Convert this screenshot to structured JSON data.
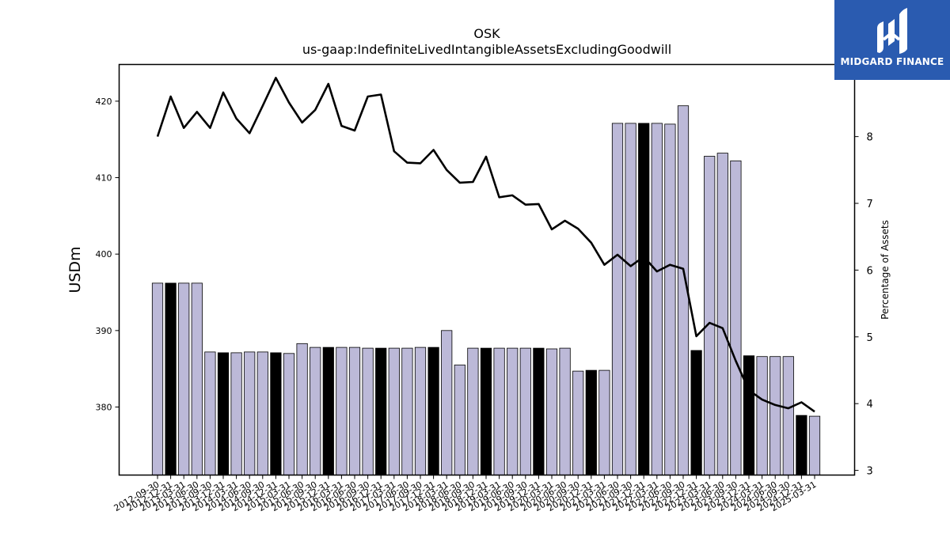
{
  "brand": {
    "name": "MIDGARD FINANCE",
    "logo_icon": "midgard-m-logo-icon",
    "color": "#2a5bb0"
  },
  "chart_data": {
    "type": "bar+line",
    "title": "OSK",
    "subtitle": "us-gaap:IndefiniteLivedIntangibleAssetsExcludingGoodwill",
    "ylabel": "USDm",
    "y2label": "Percentage of Assets",
    "ylim": [
      371.1,
      424.8
    ],
    "y2lim": [
      2.93,
      9.08
    ],
    "yticks": [
      "380",
      "390",
      "400",
      "410",
      "420"
    ],
    "y2ticks": [
      "3",
      "4",
      "5",
      "6",
      "7",
      "8"
    ],
    "bar_color": "#bcb9d8",
    "highlight_color": "#000000",
    "line_color": "#000000",
    "categories": [
      "2012-09-30",
      "2012-12-31",
      "2013-03-31",
      "2013-06-30",
      "2013-09-30",
      "2013-12-31",
      "2014-03-31",
      "2014-06-30",
      "2014-09-30",
      "2014-12-31",
      "2015-03-31",
      "2015-06-30",
      "2015-09-30",
      "2015-12-31",
      "2016-03-31",
      "2016-06-30",
      "2016-09-30",
      "2016-12-31",
      "2017-03-31",
      "2017-06-30",
      "2017-09-30",
      "2017-12-31",
      "2018-03-31",
      "2018-06-30",
      "2018-09-30",
      "2018-12-31",
      "2019-03-31",
      "2019-06-30",
      "2019-09-30",
      "2019-12-31",
      "2020-03-31",
      "2020-06-30",
      "2020-09-30",
      "2020-12-31",
      "2021-03-31",
      "2021-06-30",
      "2021-09-30",
      "2021-12-31",
      "2022-03-31",
      "2022-06-30",
      "2022-09-30",
      "2022-12-31",
      "2023-03-31",
      "2023-06-30",
      "2023-09-30",
      "2023-12-31",
      "2024-03-31",
      "2024-06-30",
      "2024-09-30",
      "2024-12-31",
      "2025-03-31"
    ],
    "series": [
      {
        "kind": "bar",
        "values": [
          396.2,
          396.2,
          396.2,
          396.2,
          387.2,
          387.1,
          387.1,
          387.2,
          387.2,
          387.1,
          387.0,
          388.3,
          387.8,
          387.8,
          387.8,
          387.8,
          387.7,
          387.7,
          387.7,
          387.7,
          387.8,
          387.8,
          390.0,
          385.5,
          387.7,
          387.7,
          387.7,
          387.7,
          387.7,
          387.7,
          387.6,
          387.7,
          384.7,
          384.8,
          384.8,
          417.1,
          417.1,
          417.1,
          417.1,
          417.0,
          419.4,
          387.4,
          412.8,
          413.2,
          412.2,
          386.7,
          386.6,
          386.6,
          386.6,
          378.9,
          378.8
        ],
        "highlight": [
          false,
          true,
          false,
          false,
          false,
          true,
          false,
          false,
          false,
          true,
          false,
          false,
          false,
          true,
          false,
          false,
          false,
          true,
          false,
          false,
          false,
          true,
          false,
          false,
          false,
          true,
          false,
          false,
          false,
          true,
          false,
          false,
          false,
          true,
          false,
          false,
          false,
          true,
          false,
          false,
          false,
          true,
          false,
          false,
          false,
          true,
          false,
          false,
          false,
          true,
          false
        ]
      },
      {
        "kind": "line",
        "axis": "right",
        "values": [
          8.0,
          8.6,
          8.13,
          8.37,
          8.13,
          8.66,
          8.27,
          8.05,
          8.46,
          8.88,
          8.51,
          8.21,
          8.4,
          8.79,
          8.16,
          8.09,
          8.6,
          8.63,
          7.78,
          7.61,
          7.6,
          7.8,
          7.5,
          7.31,
          7.32,
          7.7,
          7.09,
          7.12,
          6.98,
          6.99,
          6.61,
          6.74,
          6.62,
          6.41,
          6.08,
          6.23,
          6.06,
          6.2,
          5.98,
          6.08,
          6.02,
          5.01,
          5.21,
          5.13,
          4.64,
          4.2,
          4.06,
          3.98,
          3.93,
          4.02,
          3.88
        ]
      }
    ],
    "grid": false,
    "legend": "none"
  }
}
